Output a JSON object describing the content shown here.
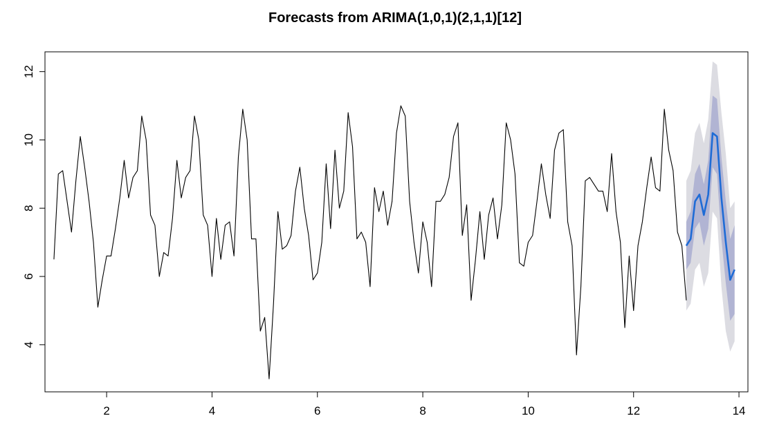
{
  "chart_data": {
    "type": "line",
    "title": "Forecasts from ARIMA(1,0,1)(2,1,1)[12]",
    "xlabel": "",
    "ylabel": "",
    "xlim": [
      0.83,
      14.17
    ],
    "ylim": [
      2.62,
      12.58
    ],
    "xticks": [
      2,
      4,
      6,
      8,
      10,
      12,
      14
    ],
    "yticks": [
      4,
      6,
      8,
      10,
      12
    ],
    "grid": false,
    "legend": "none",
    "colors": {
      "observed": "#000000",
      "forecast": "#1e6bd6",
      "pi80": "#b1b4d3",
      "pi95": "#dcdce2",
      "frame": "#000000"
    },
    "series": [
      {
        "x_start": 1,
        "x_step": 0.08333333,
        "values": [
          6.5,
          9.0,
          9.1,
          8.2,
          7.3,
          8.8,
          10.1,
          9.2,
          8.2,
          7.0,
          5.1,
          5.9,
          6.6,
          6.6,
          7.4,
          8.3,
          9.4,
          8.3,
          8.9,
          9.1,
          10.7,
          10.0,
          7.8,
          7.5,
          6.0,
          6.7,
          6.6,
          7.7,
          9.4,
          8.3,
          8.9,
          9.1,
          10.7,
          10.0,
          7.8,
          7.5,
          6.0,
          7.7,
          6.5,
          7.5,
          7.6,
          6.6,
          9.5,
          10.9,
          10.0,
          7.1,
          7.1,
          4.4,
          4.8,
          3.0,
          5.2,
          7.9,
          6.8,
          6.9,
          7.2,
          8.5,
          9.2,
          8.0,
          7.2,
          5.9,
          6.1,
          7.0,
          9.3,
          7.4,
          9.7,
          8.0,
          8.5,
          10.8,
          9.8,
          7.1,
          7.3,
          7.0,
          5.7,
          8.6,
          7.9,
          8.5,
          7.5,
          8.2,
          10.2,
          11.0,
          10.7,
          8.2,
          7.0,
          6.1,
          7.6,
          7.0,
          5.7,
          8.2,
          8.2,
          8.4,
          8.9,
          10.1,
          10.5,
          7.2,
          8.1,
          5.3,
          6.5,
          7.9,
          6.5,
          7.8,
          8.3,
          7.1,
          8.1,
          10.5,
          10.0,
          9.0,
          6.4,
          6.3,
          7.0,
          7.2,
          8.2,
          9.3,
          8.4,
          7.7,
          9.7,
          10.2,
          10.3,
          7.6,
          6.9,
          3.7,
          5.7,
          8.8,
          8.9,
          8.7,
          8.5,
          8.5,
          7.9,
          9.6,
          7.9,
          7.0,
          4.5,
          6.6,
          5.0,
          6.9,
          7.6,
          8.6,
          9.5,
          8.6,
          8.5,
          10.9,
          9.7,
          9.1,
          7.3,
          6.9,
          5.3
        ]
      },
      {
        "x_start": 13,
        "x_step": 0.08333333,
        "values": [
          6.9,
          7.1,
          8.2,
          8.4,
          7.8,
          8.4,
          10.2,
          10.1,
          8.3,
          7.0,
          5.9,
          6.2
        ]
      }
    ],
    "pi80_low": [
      6.2,
      6.4,
      7.4,
      7.6,
      6.9,
      7.4,
      9.2,
      9.0,
      7.1,
      5.8,
      4.7,
      4.9
    ],
    "pi80_high": [
      7.6,
      7.9,
      9.0,
      9.3,
      8.7,
      9.4,
      11.3,
      11.2,
      9.5,
      8.2,
      7.1,
      7.5
    ],
    "pi95_low": [
      5.0,
      5.2,
      6.2,
      6.4,
      5.7,
      6.1,
      7.9,
      7.7,
      5.7,
      4.4,
      3.8,
      4.1
    ],
    "pi95_high": [
      8.8,
      9.1,
      10.2,
      10.5,
      9.9,
      10.6,
      12.3,
      12.2,
      10.8,
      9.6,
      8.0,
      8.2
    ]
  }
}
